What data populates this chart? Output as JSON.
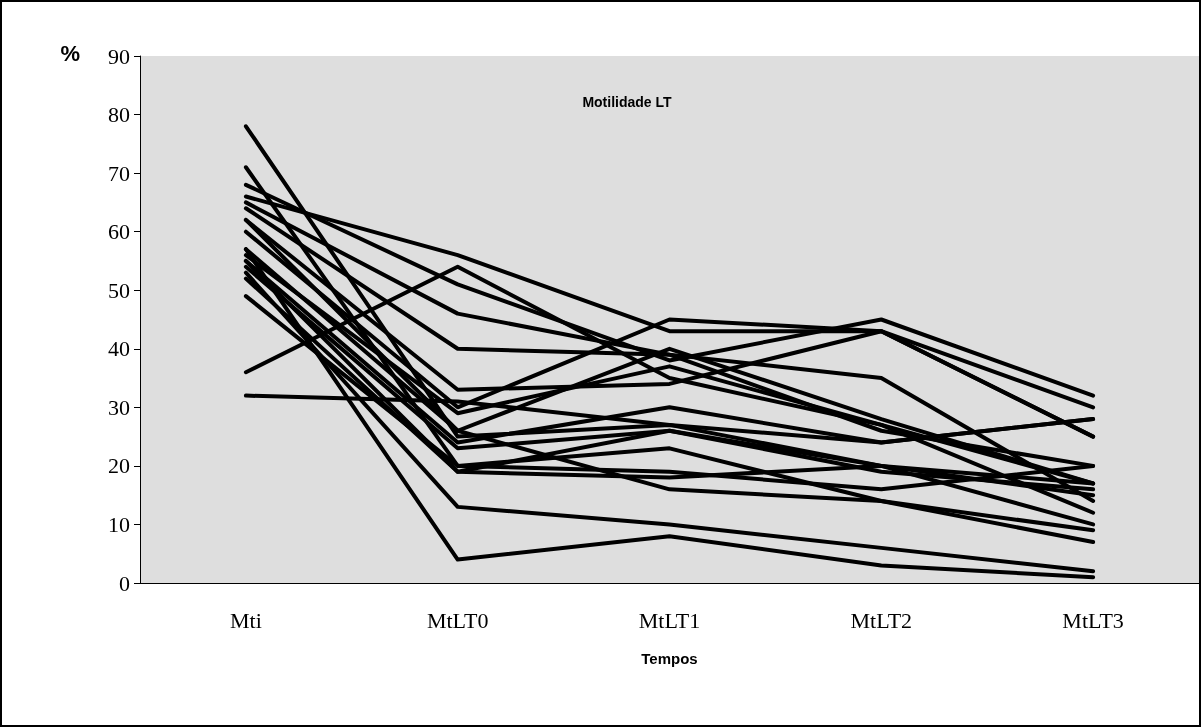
{
  "chart_data": {
    "type": "line",
    "title": "Motilidade LT",
    "xlabel": "Tempos",
    "ylabel": "%",
    "categories": [
      "Mti",
      "MtLT0",
      "MtLT1",
      "MtLT2",
      "MtLT3"
    ],
    "ylim": [
      0,
      90
    ],
    "yticks": [
      0,
      10,
      20,
      30,
      40,
      50,
      60,
      70,
      80,
      90
    ],
    "grid": false,
    "marker": "none",
    "line_style": "solid",
    "series": [
      {
        "color": "#000000",
        "values": [
          78,
          25,
          27,
          24,
          28
        ]
      },
      {
        "color": "#000000",
        "values": [
          71,
          20,
          23,
          14,
          9
        ]
      },
      {
        "color": "#000000",
        "values": [
          36,
          54,
          35,
          27,
          17
        ]
      },
      {
        "color": "#000000",
        "values": [
          32,
          31,
          27,
          20,
          17
        ]
      },
      {
        "color": "#000000",
        "values": [
          66,
          56,
          43,
          43,
          25
        ]
      },
      {
        "color": "#000000",
        "values": [
          68,
          51,
          38,
          45,
          32
        ]
      },
      {
        "color": "#000000",
        "values": [
          65,
          46,
          39,
          35,
          14
        ]
      },
      {
        "color": "#000000",
        "values": [
          64,
          40,
          39,
          26,
          20
        ]
      },
      {
        "color": "#000000",
        "values": [
          62,
          33,
          34,
          43,
          25
        ]
      },
      {
        "color": "#000000",
        "values": [
          60,
          30,
          45,
          43,
          30
        ]
      },
      {
        "color": "#000000",
        "values": [
          57,
          26,
          40,
          28,
          17
        ]
      },
      {
        "color": "#000000",
        "values": [
          56,
          29,
          37,
          27,
          12
        ]
      },
      {
        "color": "#000000",
        "values": [
          55,
          24,
          30,
          24,
          28
        ]
      },
      {
        "color": "#000000",
        "values": [
          54,
          23,
          26,
          19,
          16
        ]
      },
      {
        "color": "#000000",
        "values": [
          52,
          19,
          26,
          20,
          15
        ]
      },
      {
        "color": "#000000",
        "values": [
          49,
          20,
          19,
          16,
          20
        ]
      },
      {
        "color": "#000000",
        "values": [
          55,
          19,
          18,
          20,
          10
        ]
      },
      {
        "color": "#000000",
        "values": [
          53,
          13,
          10,
          6,
          2
        ]
      },
      {
        "color": "#000000",
        "values": [
          57,
          4,
          8,
          3,
          1
        ]
      },
      {
        "color": "#000000",
        "values": [
          62,
          26,
          16,
          14,
          7
        ]
      }
    ]
  }
}
